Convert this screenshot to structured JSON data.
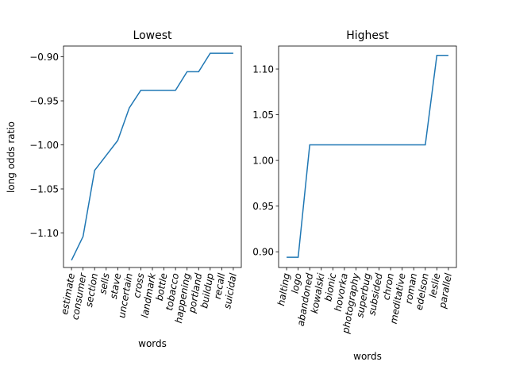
{
  "chart_data": [
    {
      "type": "line",
      "title": "Lowest",
      "xlabel": "words",
      "ylabel": "long odds ratio",
      "color": "#1f77b4",
      "categories": [
        "estimate",
        "consumer",
        "section",
        "sells",
        "stave",
        "uncertain",
        "cross",
        "landmark",
        "bottle",
        "tobacco",
        "happening",
        "portland",
        "buildup",
        "recall",
        "suicidal"
      ],
      "values": [
        -1.131,
        -1.104,
        -1.029,
        -1.012,
        -0.995,
        -0.958,
        -0.938,
        -0.938,
        -0.938,
        -0.938,
        -0.917,
        -0.917,
        -0.896,
        -0.896,
        -0.896
      ],
      "ylim": [
        -1.1392,
        -0.8878
      ],
      "yticks": [
        -1.1,
        -1.05,
        -1.0,
        -0.95,
        -0.9
      ],
      "ytick_labels": [
        "−1.10",
        "−1.05",
        "−1.00",
        "−0.95",
        "−0.90"
      ],
      "grid": false
    },
    {
      "type": "line",
      "title": "Highest",
      "xlabel": "words",
      "ylabel": "",
      "color": "#1f77b4",
      "categories": [
        "halting",
        "logo",
        "abandoned",
        "kowalski",
        "bionic",
        "hovorka",
        "photography",
        "superbug",
        "subsided",
        "chron",
        "meditative",
        "roman",
        "edelson",
        "leslie",
        "parallel"
      ],
      "values": [
        0.894,
        0.894,
        1.017,
        1.017,
        1.017,
        1.017,
        1.017,
        1.017,
        1.017,
        1.017,
        1.017,
        1.017,
        1.017,
        1.115,
        1.115
      ],
      "ylim": [
        0.8828,
        1.1252
      ],
      "yticks": [
        0.9,
        0.95,
        1.0,
        1.05,
        1.1
      ],
      "ytick_labels": [
        "0.90",
        "0.95",
        "1.00",
        "1.05",
        "1.10"
      ],
      "grid": false
    }
  ]
}
